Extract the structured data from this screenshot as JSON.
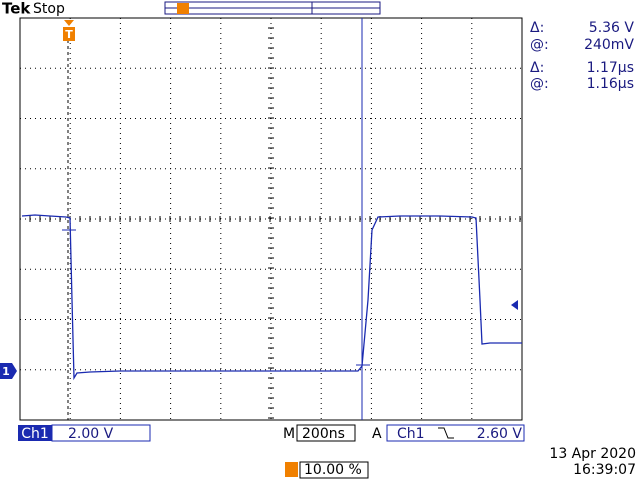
{
  "header": {
    "brand": "Tek",
    "status": "Stop"
  },
  "markers": {
    "trigger": "T",
    "channel": "1"
  },
  "readouts": [
    {
      "label": "Δ:",
      "value": "5.36 V"
    },
    {
      "label": "@:",
      "value": "240mV"
    },
    {
      "label": "Δ:",
      "value": "1.17µs"
    },
    {
      "label": "@:",
      "value": "1.16µs"
    }
  ],
  "footer": {
    "channel": "Ch1",
    "volts_per_div": "2.00 V",
    "time_label": "M",
    "time_per_div": "200ns",
    "trigger_label": "A",
    "trigger_channel": "Ch1",
    "trigger_level": "2.60 V",
    "trigger_position": "10.00 %",
    "date": "13 Apr 2020",
    "time": "16:39:07"
  }
}
